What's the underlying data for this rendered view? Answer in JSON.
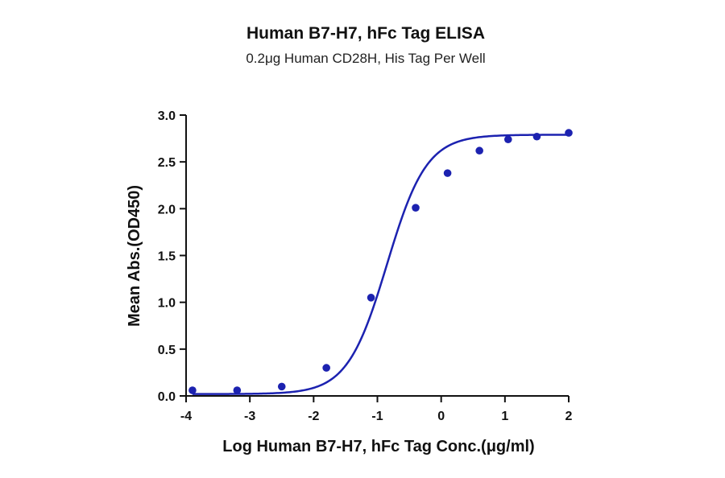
{
  "chart_data": {
    "type": "scatter",
    "title": "Human B7-H7, hFc Tag ELISA",
    "subtitle": "0.2μg Human CD28H, His Tag Per Well",
    "xlabel": "Log Human B7-H7, hFc Tag Conc.(μg/ml)",
    "ylabel": "Mean Abs.(OD450)",
    "xlim": [
      -4,
      2
    ],
    "ylim": [
      0,
      3
    ],
    "xticks": [
      "-4",
      "-3",
      "-2",
      "-1",
      "0",
      "1",
      "2"
    ],
    "yticks": [
      "0.0",
      "0.5",
      "1.0",
      "1.5",
      "2.0",
      "2.5",
      "3.0"
    ],
    "grid": false,
    "series": [
      {
        "color": "#1c22b0",
        "x": [
          -3.9,
          -3.2,
          -2.5,
          -1.8,
          -1.1,
          -0.4,
          0.1,
          0.6,
          1.05,
          1.5,
          2.0
        ],
        "y": [
          0.06,
          0.06,
          0.1,
          0.3,
          1.05,
          2.01,
          2.38,
          2.62,
          2.74,
          2.77,
          2.81
        ]
      }
    ],
    "fit_curve": {
      "model": "4PL",
      "bottom": 0.02,
      "top": 2.79,
      "log_ec50": -0.85,
      "hill_slope": 1.4,
      "color": "#1c22b0"
    }
  }
}
